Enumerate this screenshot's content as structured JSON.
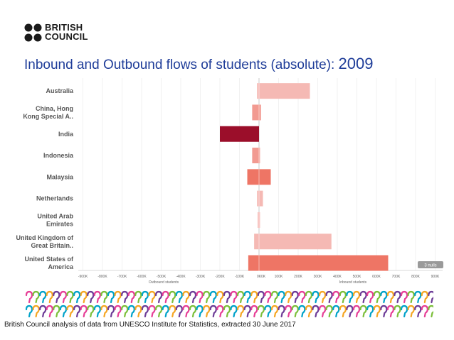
{
  "logo": {
    "line1": "BRITISH",
    "line2": "COUNCIL"
  },
  "title": {
    "main": "Inbound and Outbound flows of students (absolute)",
    "sep": ": ",
    "year": "2009"
  },
  "source": "British Council analysis of data from UNESCO Institute for Statistics, extracted 30 June 2017",
  "colors": {
    "title": "#1f3d99",
    "bar_dark": "#9b0e2a",
    "bar_mid": "#ee7565",
    "bar_light": "#f5b9b4",
    "strip": [
      "#e63e96",
      "#7cbf3a",
      "#00a2c9",
      "#f5a623",
      "#6d3c97"
    ]
  },
  "chart_data": {
    "type": "bar",
    "orientation": "horizontal-diverging",
    "categories": [
      "Australia",
      "China, Hong Kong Special A..",
      "India",
      "Indonesia",
      "Malaysia",
      "Netherlands",
      "United Arab Emirates",
      "United Kingdom of Great Britain..",
      "United States of America"
    ],
    "series": [
      {
        "name": "Outbound students",
        "values": [
          -10000,
          -35000,
          -200000,
          -35000,
          -60000,
          -10000,
          -7000,
          -25000,
          -55000
        ]
      },
      {
        "name": "Inbound students",
        "values": [
          260000,
          10000,
          0,
          5000,
          60000,
          20000,
          5000,
          370000,
          660000
        ]
      }
    ],
    "bar_colors": [
      "#f5b9b4",
      "#f29a91",
      "#9b0e2a",
      "#f29a91",
      "#ee7565",
      "#f5b9b4",
      "#f5b9b4",
      "#f5b9b4",
      "#ee7565"
    ],
    "x_ticks": [
      "-900K",
      "-800K",
      "-700K",
      "-600K",
      "-500K",
      "-400K",
      "-300K",
      "-200K",
      "-100K",
      "0K",
      "0K",
      "100K",
      "200K",
      "300K",
      "400K",
      "500K",
      "600K",
      "700K",
      "800K",
      "900K"
    ],
    "xlabel_left": "Outbound students",
    "xlabel_right": "Inbound students",
    "null_badge": "3 nulls"
  }
}
